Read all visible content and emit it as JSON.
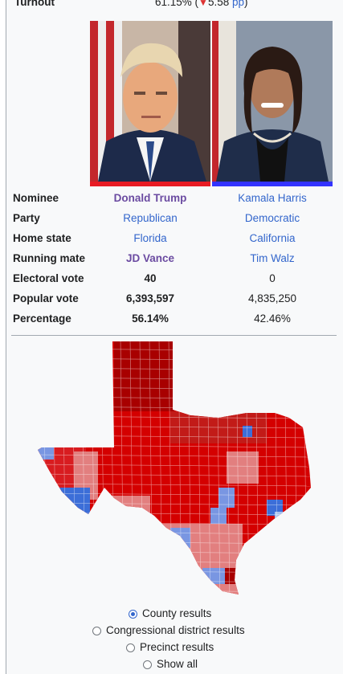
{
  "turnout": {
    "label": "Turnout",
    "value": "61.15% (",
    "arrow": "▼",
    "change": "5.58",
    "unit": "pp",
    "close": ")"
  },
  "candidates": [
    {
      "name": "Donald Trump",
      "party": "Republican",
      "home_state": "Florida",
      "running_mate": "JD Vance",
      "electoral_vote": "40",
      "popular_vote": "6,393,597",
      "percentage": "56.14%",
      "color": "#e81b23"
    },
    {
      "name": "Kamala Harris",
      "party": "Democratic",
      "home_state": "California",
      "running_mate": "Tim Walz",
      "electoral_vote": "0",
      "popular_vote": "4,835,250",
      "percentage": "42.46%",
      "color": "#3333ff"
    }
  ],
  "labels": {
    "nominee": "Nominee",
    "party": "Party",
    "home_state": "Home state",
    "running_mate": "Running mate",
    "electoral_vote": "Electoral vote",
    "popular_vote": "Popular vote",
    "percentage": "Percentage"
  },
  "map_options": [
    {
      "label": "County results",
      "checked": true
    },
    {
      "label": "Congressional district results",
      "checked": false
    },
    {
      "label": "Precinct results",
      "checked": false
    },
    {
      "label": "Show all",
      "checked": false
    }
  ],
  "colors": {
    "rep_dark": "#a80000",
    "rep_mid": "#d40000",
    "rep_light": "#e27f7f",
    "dem_light": "#7996e2",
    "dem_mid": "#3366cc"
  }
}
